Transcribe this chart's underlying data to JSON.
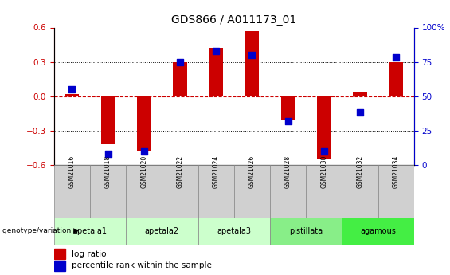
{
  "title": "GDS866 / A011173_01",
  "samples": [
    "GSM21016",
    "GSM21018",
    "GSM21020",
    "GSM21022",
    "GSM21024",
    "GSM21026",
    "GSM21028",
    "GSM21030",
    "GSM21032",
    "GSM21034"
  ],
  "log_ratios": [
    0.02,
    -0.42,
    -0.48,
    0.3,
    0.42,
    0.57,
    -0.2,
    -0.55,
    0.04,
    0.3
  ],
  "percentile_ranks": [
    55,
    8,
    10,
    75,
    83,
    80,
    32,
    10,
    38,
    78
  ],
  "groups": [
    {
      "name": "apetala1",
      "samples": [
        "GSM21016",
        "GSM21018"
      ],
      "color": "#ccffcc"
    },
    {
      "name": "apetala2",
      "samples": [
        "GSM21020",
        "GSM21022"
      ],
      "color": "#ccffcc"
    },
    {
      "name": "apetala3",
      "samples": [
        "GSM21024",
        "GSM21026"
      ],
      "color": "#ccffcc"
    },
    {
      "name": "pistillata",
      "samples": [
        "GSM21028",
        "GSM21030"
      ],
      "color": "#88ee88"
    },
    {
      "name": "agamous",
      "samples": [
        "GSM21032",
        "GSM21034"
      ],
      "color": "#44ee44"
    }
  ],
  "ylim_left": [
    -0.6,
    0.6
  ],
  "ylim_right": [
    0,
    100
  ],
  "yticks_left": [
    -0.6,
    -0.3,
    0.0,
    0.3,
    0.6
  ],
  "yticks_right": [
    0,
    25,
    50,
    75,
    100
  ],
  "bar_color": "#cc0000",
  "dot_color": "#0000cc",
  "hline_color": "#cc0000",
  "grid_color": "#000000"
}
